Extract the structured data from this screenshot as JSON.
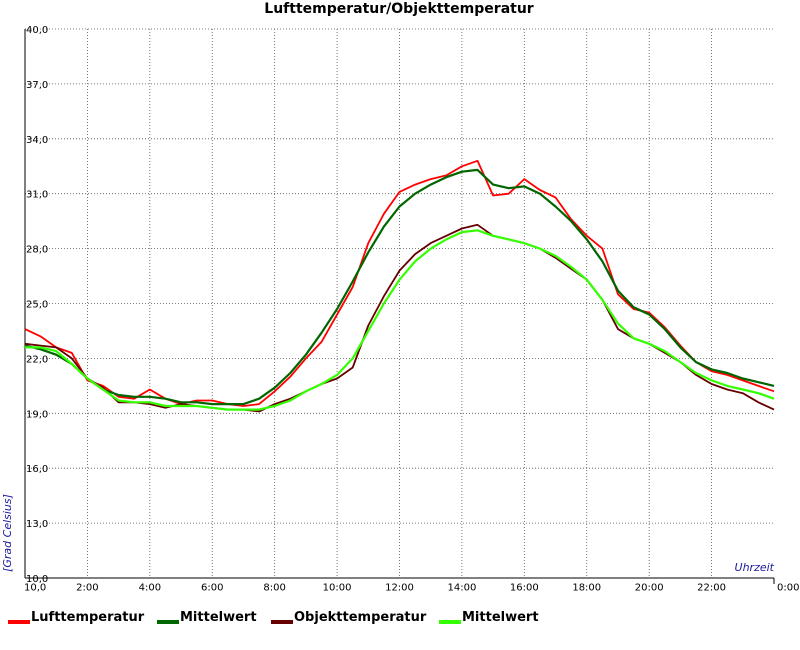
{
  "chart_data": {
    "type": "line",
    "title": "Lufttemperatur/Objekttemperatur",
    "xlabel": "Uhrzeit",
    "ylabel": "[Grad Celsius]",
    "ylim": [
      10,
      40
    ],
    "xlim": [
      0,
      24
    ],
    "y_ticks": [
      "10,0",
      "13,0",
      "16,0",
      "19,0",
      "22,0",
      "25,0",
      "28,0",
      "31,0",
      "34,0",
      "37,0",
      "40,0"
    ],
    "x_ticks": [
      "2:00",
      "4:00",
      "6:00",
      "8:00",
      "10:00",
      "12:00",
      "14:00",
      "16:00",
      "18:00",
      "20:00",
      "22:00",
      "0:00"
    ],
    "grid": true,
    "legend_position": "bottom",
    "x": [
      0,
      0.5,
      1,
      1.5,
      2,
      2.5,
      3,
      3.5,
      4,
      4.5,
      5,
      5.5,
      6,
      6.5,
      7,
      7.5,
      8,
      8.5,
      9,
      9.5,
      10,
      10.5,
      11,
      11.5,
      12,
      12.5,
      13,
      13.5,
      14,
      14.5,
      15,
      15.5,
      16,
      16.5,
      17,
      17.5,
      18,
      18.5,
      19,
      19.5,
      20,
      20.5,
      21,
      21.5,
      22,
      22.5,
      23,
      23.5,
      24
    ],
    "series": [
      {
        "name": "Lufttemperatur",
        "color": "#ff0000",
        "values": [
          23.6,
          23.2,
          22.6,
          22.3,
          20.8,
          20.5,
          19.9,
          19.8,
          20.3,
          19.8,
          19.5,
          19.7,
          19.7,
          19.5,
          19.4,
          19.5,
          20.2,
          21.0,
          22.0,
          22.9,
          24.4,
          25.9,
          28.3,
          29.9,
          31.1,
          31.5,
          31.8,
          32.0,
          32.5,
          32.8,
          30.9,
          31.0,
          31.8,
          31.2,
          30.8,
          29.6,
          28.7,
          28.0,
          25.5,
          24.7,
          24.5,
          23.7,
          22.7,
          21.8,
          21.3,
          21.1,
          20.8,
          20.5,
          20.2
        ]
      },
      {
        "name": "Mittelwert",
        "color": "#006600",
        "values": [
          22.7,
          22.5,
          22.2,
          21.7,
          20.9,
          20.3,
          20.0,
          19.9,
          19.9,
          19.8,
          19.6,
          19.6,
          19.5,
          19.5,
          19.5,
          19.8,
          20.4,
          21.2,
          22.2,
          23.4,
          24.7,
          26.2,
          27.8,
          29.2,
          30.3,
          31.0,
          31.5,
          31.9,
          32.2,
          32.3,
          31.5,
          31.3,
          31.4,
          31.0,
          30.3,
          29.5,
          28.5,
          27.3,
          25.7,
          24.8,
          24.4,
          23.6,
          22.6,
          21.8,
          21.4,
          21.2,
          20.9,
          20.7,
          20.5
        ]
      },
      {
        "name": "Objekttemperatur",
        "color": "#660000",
        "values": [
          22.8,
          22.7,
          22.6,
          22.0,
          20.9,
          20.4,
          19.6,
          19.6,
          19.5,
          19.3,
          19.5,
          19.4,
          19.3,
          19.2,
          19.2,
          19.1,
          19.5,
          19.8,
          20.2,
          20.6,
          20.9,
          21.5,
          23.8,
          25.4,
          26.8,
          27.7,
          28.3,
          28.7,
          29.1,
          29.3,
          28.7,
          28.5,
          28.3,
          28.0,
          27.5,
          26.9,
          26.3,
          25.2,
          23.6,
          23.1,
          22.8,
          22.3,
          21.8,
          21.1,
          20.6,
          20.3,
          20.1,
          19.6,
          19.2
        ]
      },
      {
        "name": "Mittelwert",
        "color": "#33ff00",
        "values": [
          22.6,
          22.6,
          22.4,
          21.7,
          20.9,
          20.3,
          19.7,
          19.6,
          19.6,
          19.4,
          19.4,
          19.4,
          19.3,
          19.2,
          19.2,
          19.2,
          19.4,
          19.7,
          20.2,
          20.6,
          21.1,
          22.0,
          23.5,
          25.0,
          26.3,
          27.3,
          28.0,
          28.5,
          28.9,
          29.0,
          28.7,
          28.5,
          28.3,
          28.0,
          27.6,
          27.0,
          26.3,
          25.2,
          23.9,
          23.1,
          22.8,
          22.4,
          21.8,
          21.2,
          20.8,
          20.5,
          20.3,
          20.1,
          19.8
        ]
      }
    ]
  }
}
